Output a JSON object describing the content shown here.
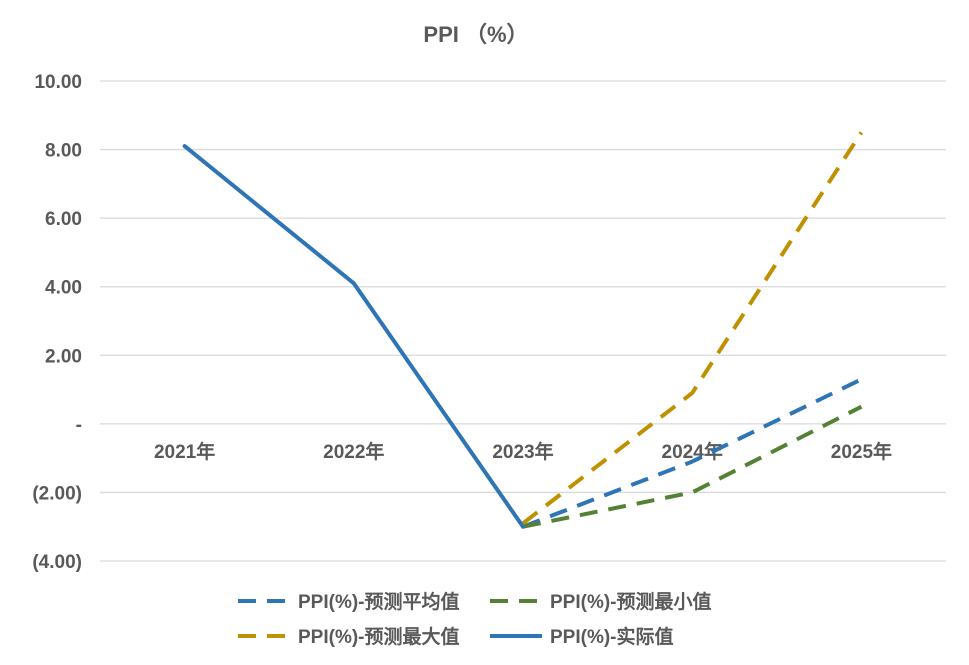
{
  "chart_data": {
    "type": "line",
    "title": "PPI （%）",
    "categories": [
      "2021年",
      "2022年",
      "2023年",
      "2024年",
      "2025年"
    ],
    "ylim": [
      -4,
      10
    ],
    "yticks": [
      10,
      8,
      6,
      4,
      2,
      0,
      -2,
      -4
    ],
    "ytick_labels": [
      "10.00",
      "8.00",
      "6.00",
      "4.00",
      "2.00",
      "-",
      "(2.00)",
      "(4.00)"
    ],
    "grid": true,
    "legend_position": "bottom",
    "series": [
      {
        "name": "PPI(%)-预测平均值",
        "values": [
          null,
          null,
          -3.0,
          -1.1,
          1.3
        ],
        "color": "#2e75b6",
        "dashed": true
      },
      {
        "name": "PPI(%)-预测最小值",
        "values": [
          null,
          null,
          -3.0,
          -2.0,
          0.5
        ],
        "color": "#548235",
        "dashed": true
      },
      {
        "name": "PPI(%)-预测最大值",
        "values": [
          null,
          null,
          -2.9,
          0.9,
          8.5
        ],
        "color": "#bf9000",
        "dashed": true
      },
      {
        "name": "PPI(%)-实际值",
        "values": [
          8.1,
          4.1,
          -3.0,
          null,
          null
        ],
        "color": "#2e75b6",
        "dashed": false
      }
    ]
  }
}
